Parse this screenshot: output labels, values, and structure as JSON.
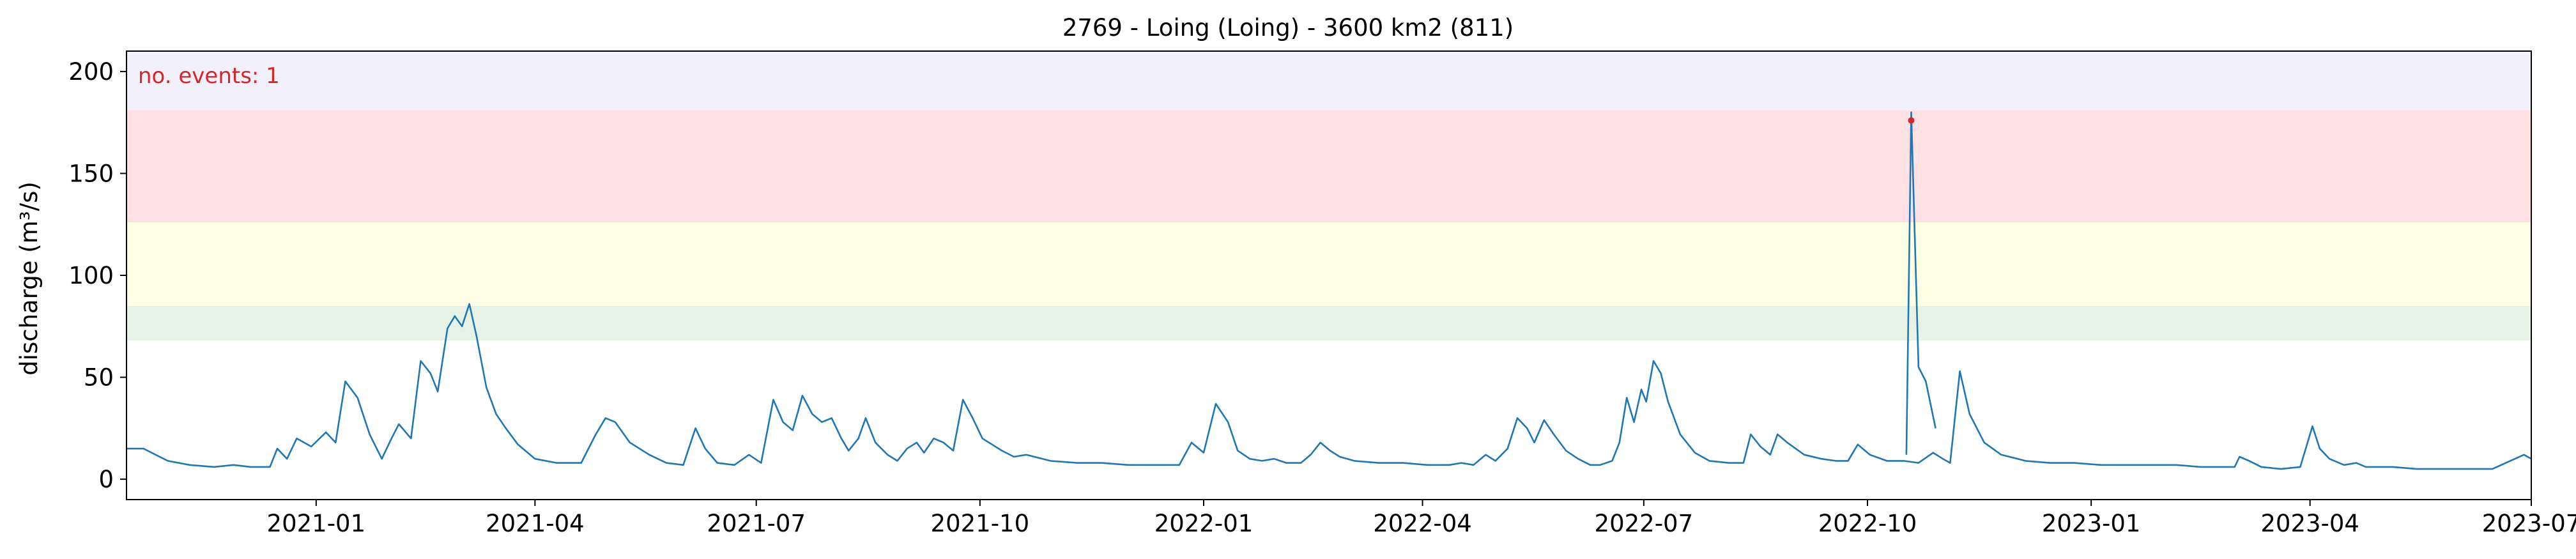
{
  "chart_data": {
    "type": "line",
    "title": "2769 - Loing (Loing) - 3600 km2 (811)",
    "xlabel": "",
    "ylabel": "discharge (m³/s)",
    "xlim": [
      "2020-10-15",
      "2023-07-01"
    ],
    "ylim": [
      -10,
      210
    ],
    "x_ticks": [
      "2021-01",
      "2021-04",
      "2021-07",
      "2021-10",
      "2022-01",
      "2022-04",
      "2022-07",
      "2022-10",
      "2023-01",
      "2023-04",
      "2023-07"
    ],
    "y_ticks": [
      0,
      50,
      100,
      150,
      200
    ],
    "grid": false,
    "annotation": "no. events: 1",
    "bands": [
      {
        "from": 68,
        "to": 85,
        "color": "#e5f2e5"
      },
      {
        "from": 85,
        "to": 126,
        "color": "#fefee5"
      },
      {
        "from": 126,
        "to": 181,
        "color": "#ffe0e3"
      },
      {
        "from": 181,
        "to": 210,
        "color": "#f1f0fb"
      }
    ],
    "series": [
      {
        "color": "#1f77b4",
        "points": [
          [
            "2020-10-15",
            15
          ],
          [
            "2020-10-22",
            15
          ],
          [
            "2020-11-01",
            9
          ],
          [
            "2020-11-10",
            7
          ],
          [
            "2020-11-20",
            6
          ],
          [
            "2020-11-28",
            7
          ],
          [
            "2020-12-05",
            6
          ],
          [
            "2020-12-13",
            6
          ],
          [
            "2020-12-16",
            15
          ],
          [
            "2020-12-20",
            10
          ],
          [
            "2020-12-24",
            20
          ],
          [
            "2020-12-30",
            16
          ],
          [
            "2021-01-05",
            23
          ],
          [
            "2021-01-09",
            18
          ],
          [
            "2021-01-13",
            48
          ],
          [
            "2021-01-18",
            40
          ],
          [
            "2021-01-23",
            22
          ],
          [
            "2021-01-28",
            10
          ],
          [
            "2021-02-01",
            20
          ],
          [
            "2021-02-04",
            27
          ],
          [
            "2021-02-09",
            20
          ],
          [
            "2021-02-13",
            58
          ],
          [
            "2021-02-17",
            52
          ],
          [
            "2021-02-20",
            43
          ],
          [
            "2021-02-24",
            74
          ],
          [
            "2021-02-27",
            80
          ],
          [
            "2021-03-02",
            75
          ],
          [
            "2021-03-05",
            86
          ],
          [
            "2021-03-08",
            70
          ],
          [
            "2021-03-12",
            45
          ],
          [
            "2021-03-16",
            32
          ],
          [
            "2021-03-20",
            25
          ],
          [
            "2021-03-25",
            17
          ],
          [
            "2021-04-01",
            10
          ],
          [
            "2021-04-10",
            8
          ],
          [
            "2021-04-20",
            8
          ],
          [
            "2021-04-26",
            22
          ],
          [
            "2021-04-30",
            30
          ],
          [
            "2021-05-04",
            28
          ],
          [
            "2021-05-10",
            18
          ],
          [
            "2021-05-18",
            12
          ],
          [
            "2021-05-25",
            8
          ],
          [
            "2021-06-01",
            7
          ],
          [
            "2021-06-06",
            25
          ],
          [
            "2021-06-10",
            15
          ],
          [
            "2021-06-15",
            8
          ],
          [
            "2021-06-22",
            7
          ],
          [
            "2021-06-28",
            12
          ],
          [
            "2021-07-03",
            8
          ],
          [
            "2021-07-08",
            39
          ],
          [
            "2021-07-12",
            28
          ],
          [
            "2021-07-16",
            24
          ],
          [
            "2021-07-20",
            41
          ],
          [
            "2021-07-24",
            32
          ],
          [
            "2021-07-28",
            28
          ],
          [
            "2021-08-01",
            30
          ],
          [
            "2021-08-05",
            20
          ],
          [
            "2021-08-08",
            14
          ],
          [
            "2021-08-12",
            20
          ],
          [
            "2021-08-15",
            30
          ],
          [
            "2021-08-19",
            18
          ],
          [
            "2021-08-24",
            12
          ],
          [
            "2021-08-28",
            9
          ],
          [
            "2021-09-01",
            15
          ],
          [
            "2021-09-05",
            18
          ],
          [
            "2021-09-08",
            13
          ],
          [
            "2021-09-12",
            20
          ],
          [
            "2021-09-16",
            18
          ],
          [
            "2021-09-20",
            14
          ],
          [
            "2021-09-24",
            39
          ],
          [
            "2021-09-28",
            30
          ],
          [
            "2021-10-02",
            20
          ],
          [
            "2021-10-06",
            17
          ],
          [
            "2021-10-10",
            14
          ],
          [
            "2021-10-15",
            11
          ],
          [
            "2021-10-20",
            12
          ],
          [
            "2021-10-30",
            9
          ],
          [
            "2021-11-10",
            8
          ],
          [
            "2021-11-20",
            8
          ],
          [
            "2021-12-01",
            7
          ],
          [
            "2021-12-10",
            7
          ],
          [
            "2021-12-16",
            7
          ],
          [
            "2021-12-22",
            7
          ],
          [
            "2021-12-27",
            18
          ],
          [
            "2022-01-01",
            13
          ],
          [
            "2022-01-06",
            37
          ],
          [
            "2022-01-11",
            28
          ],
          [
            "2022-01-15",
            14
          ],
          [
            "2022-01-20",
            10
          ],
          [
            "2022-01-25",
            9
          ],
          [
            "2022-01-30",
            10
          ],
          [
            "2022-02-04",
            8
          ],
          [
            "2022-02-10",
            8
          ],
          [
            "2022-02-14",
            12
          ],
          [
            "2022-02-18",
            18
          ],
          [
            "2022-02-22",
            14
          ],
          [
            "2022-02-26",
            11
          ],
          [
            "2022-03-04",
            9
          ],
          [
            "2022-03-14",
            8
          ],
          [
            "2022-03-24",
            8
          ],
          [
            "2022-04-03",
            7
          ],
          [
            "2022-04-12",
            7
          ],
          [
            "2022-04-17",
            8
          ],
          [
            "2022-04-22",
            7
          ],
          [
            "2022-04-27",
            12
          ],
          [
            "2022-05-01",
            9
          ],
          [
            "2022-05-06",
            15
          ],
          [
            "2022-05-10",
            30
          ],
          [
            "2022-05-14",
            25
          ],
          [
            "2022-05-17",
            18
          ],
          [
            "2022-05-21",
            29
          ],
          [
            "2022-05-25",
            22
          ],
          [
            "2022-05-30",
            14
          ],
          [
            "2022-06-04",
            10
          ],
          [
            "2022-06-09",
            7
          ],
          [
            "2022-06-13",
            7
          ],
          [
            "2022-06-18",
            9
          ],
          [
            "2022-06-21",
            18
          ],
          [
            "2022-06-24",
            40
          ],
          [
            "2022-06-27",
            28
          ],
          [
            "2022-06-30",
            44
          ],
          [
            "2022-07-02",
            38
          ],
          [
            "2022-07-05",
            58
          ],
          [
            "2022-07-08",
            52
          ],
          [
            "2022-07-11",
            38
          ],
          [
            "2022-07-16",
            22
          ],
          [
            "2022-07-22",
            13
          ],
          [
            "2022-07-28",
            9
          ],
          [
            "2022-08-05",
            8
          ],
          [
            "2022-08-11",
            8
          ],
          [
            "2022-08-14",
            22
          ],
          [
            "2022-08-18",
            16
          ],
          [
            "2022-08-22",
            12
          ],
          [
            "2022-08-25",
            22
          ],
          [
            "2022-08-29",
            18
          ],
          [
            "2022-09-05",
            12
          ],
          [
            "2022-09-12",
            10
          ],
          [
            "2022-09-18",
            9
          ],
          [
            "2022-09-23",
            9
          ],
          [
            "2022-09-27",
            17
          ],
          [
            "2022-10-02",
            12
          ],
          [
            "2022-10-09",
            9
          ],
          [
            "2022-10-16",
            9
          ],
          [
            "2022-10-22",
            8
          ],
          [
            "2022-10-28",
            13
          ],
          [
            "2022-11-01",
            10
          ],
          [
            "2022-11-04",
            8
          ],
          [
            "2022-11-08",
            53
          ],
          [
            "2022-11-12",
            32
          ],
          [
            "2022-11-18",
            18
          ],
          [
            "2022-11-25",
            12
          ],
          [
            "2022-12-05",
            9
          ],
          [
            "2022-12-15",
            8
          ],
          [
            "2022-12-25",
            8
          ],
          [
            "2023-01-05",
            7
          ],
          [
            "2023-01-15",
            7
          ],
          [
            "2023-01-25",
            7
          ],
          [
            "2023-02-05",
            7
          ],
          [
            "2023-02-15",
            6
          ],
          [
            "2023-02-25",
            6
          ],
          [
            "2023-03-01",
            6
          ],
          [
            "2023-03-03",
            11
          ],
          [
            "2023-03-07",
            9
          ],
          [
            "2023-03-12",
            6
          ],
          [
            "2023-03-20",
            5
          ],
          [
            "2023-03-28",
            6
          ],
          [
            "2023-04-02",
            26
          ],
          [
            "2023-04-05",
            15
          ],
          [
            "2023-04-09",
            10
          ],
          [
            "2023-04-15",
            7
          ],
          [
            "2023-04-20",
            8
          ],
          [
            "2023-04-24",
            6
          ],
          [
            "2023-05-05",
            6
          ],
          [
            "2023-05-15",
            5
          ],
          [
            "2023-05-25",
            5
          ],
          [
            "2023-06-05",
            5
          ],
          [
            "2023-06-15",
            5
          ],
          [
            "2023-06-28",
            12
          ],
          [
            "2023-07-01",
            10
          ]
        ]
      }
    ]
  }
}
